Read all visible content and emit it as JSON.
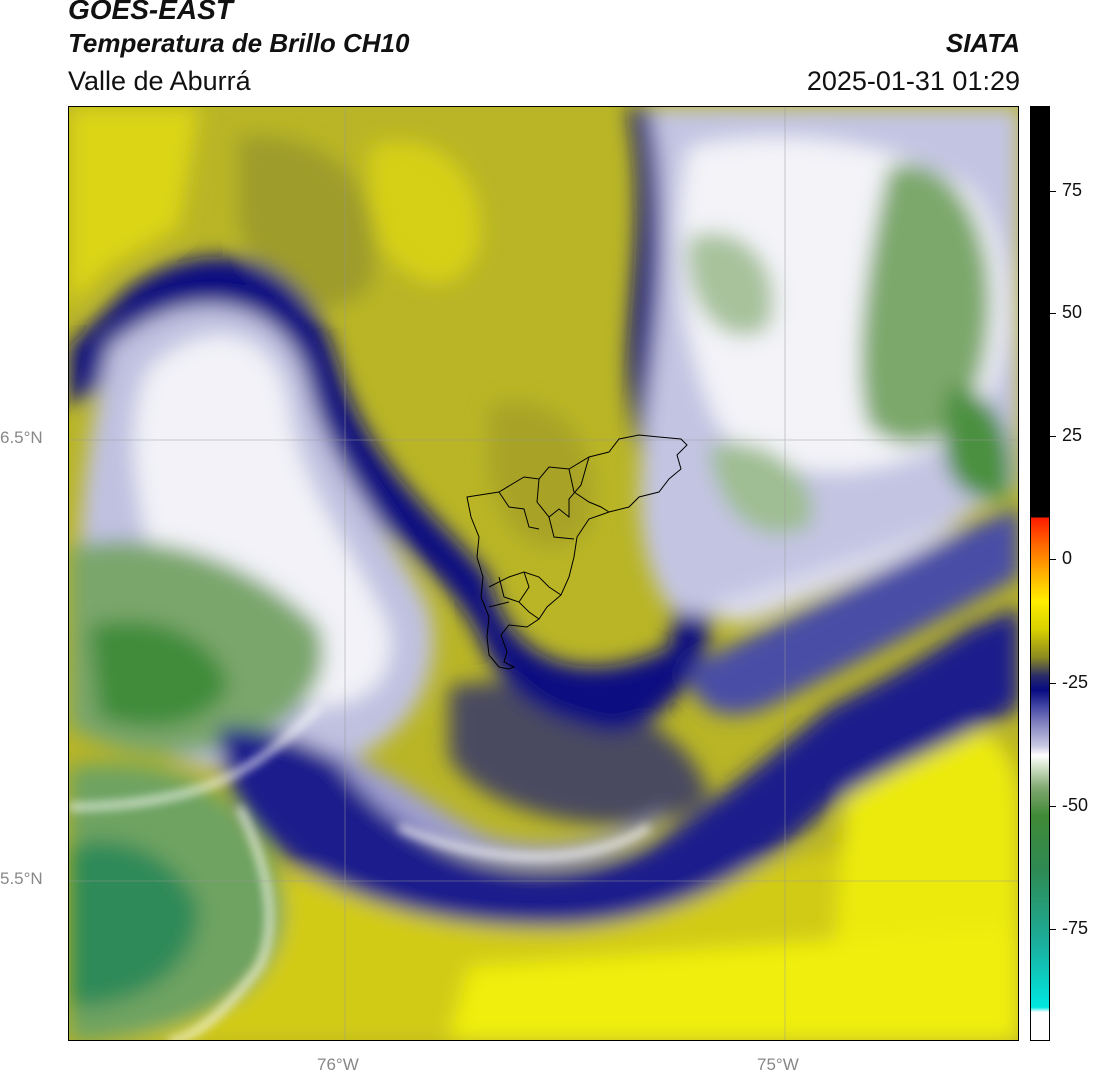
{
  "header": {
    "satellite": "GOES-EAST",
    "product": "Temperatura de Brillo CH10",
    "region": "Valle de Aburrá",
    "agency": "SIATA",
    "datetime": "2025-01-31 01:29"
  },
  "axes": {
    "lat_labels": [
      "6.5°N",
      "5.5°N"
    ],
    "lon_labels": [
      "76°W",
      "75°W"
    ]
  },
  "colorbar": {
    "tick_labels": [
      "75",
      "50",
      "25",
      "0",
      "-25",
      "-50",
      "-75"
    ]
  },
  "colors": {
    "yellow": "#e3dc10",
    "olive": "#9a9a2a",
    "dark_blue": "#05087e",
    "mid_blue": "#4a4fa6",
    "light_lavender": "#c9cae6",
    "white": "#ffffff",
    "light_green": "#a6c198",
    "green": "#4a8f3c",
    "teal_green": "#2e8f5c"
  }
}
